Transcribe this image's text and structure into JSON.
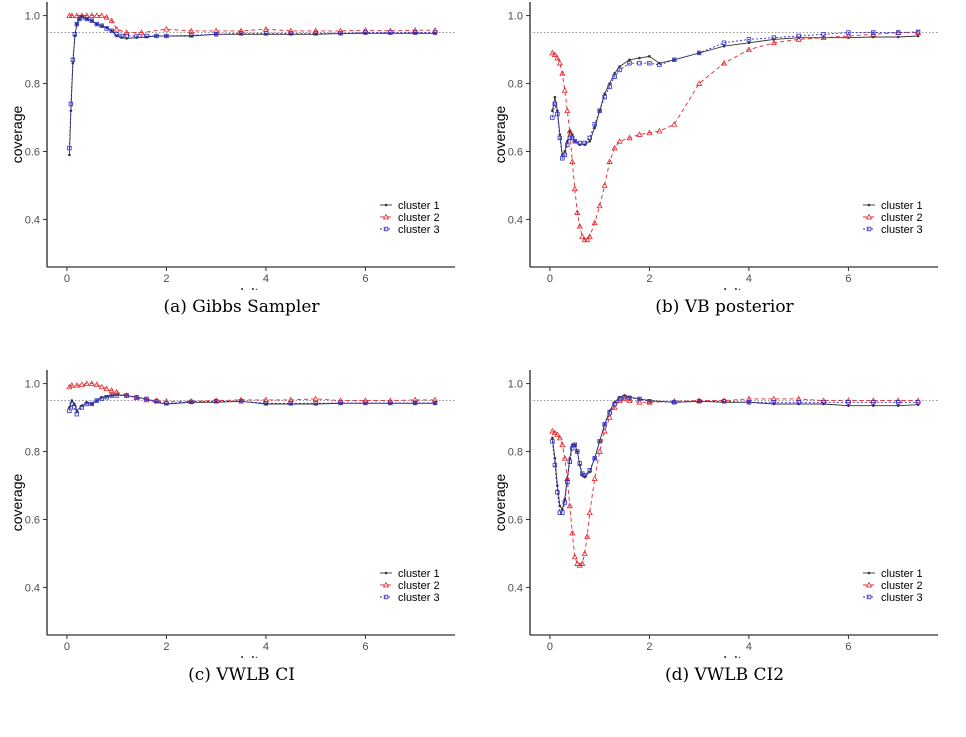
{
  "chart_data": [
    {
      "type": "line",
      "caption": "(a) Gibbs Sampler",
      "xlabel": "delta",
      "ylabel": "coverage",
      "xlim": [
        -0.4,
        7.8
      ],
      "ylim": [
        0.26,
        1.04
      ],
      "xticks": [
        0,
        2,
        4,
        6
      ],
      "yticks": [
        0.4,
        0.6,
        0.8,
        1.0
      ],
      "ytick_labels": [
        "0.4",
        "0.6",
        "0.8",
        "1.0"
      ],
      "reference_line": 0.95,
      "grid": false,
      "legend_position": "bottom-right",
      "series": [
        {
          "name": "cluster 1",
          "color": "#333333",
          "dash": "solid",
          "marker": "dot",
          "x": [
            0.05,
            0.08,
            0.12,
            0.16,
            0.2,
            0.25,
            0.3,
            0.4,
            0.5,
            0.6,
            0.7,
            0.8,
            0.9,
            1.0,
            1.1,
            1.2,
            1.4,
            1.6,
            1.8,
            2.0,
            2.5,
            3.0,
            3.5,
            4.0,
            4.5,
            5.0,
            5.5,
            6.0,
            6.5,
            7.0,
            7.4
          ],
          "y": [
            0.59,
            0.72,
            0.86,
            0.94,
            0.975,
            0.99,
            0.997,
            0.99,
            0.985,
            0.975,
            0.97,
            0.965,
            0.955,
            0.94,
            0.935,
            0.933,
            0.935,
            0.937,
            0.94,
            0.94,
            0.94,
            0.945,
            0.945,
            0.945,
            0.945,
            0.945,
            0.947,
            0.948,
            0.948,
            0.948,
            0.948
          ]
        },
        {
          "name": "cluster 2",
          "color": "#e8262b",
          "dash": "4,3",
          "marker": "triangle",
          "x": [
            0.05,
            0.1,
            0.2,
            0.3,
            0.4,
            0.5,
            0.6,
            0.7,
            0.8,
            0.9,
            1.0,
            1.2,
            1.5,
            2.0,
            2.5,
            3.0,
            3.5,
            4.0,
            4.5,
            5.0,
            5.5,
            6.0,
            6.5,
            7.0,
            7.4
          ],
          "y": [
            1.0,
            1.0,
            1.0,
            1.0,
            1.0,
            1.0,
            1.0,
            1.0,
            0.995,
            0.985,
            0.96,
            0.95,
            0.95,
            0.96,
            0.955,
            0.955,
            0.955,
            0.96,
            0.955,
            0.955,
            0.955,
            0.957,
            0.955,
            0.957,
            0.957
          ]
        },
        {
          "name": "cluster 3",
          "color": "#2d2dcf",
          "dash": "2,2",
          "marker": "square",
          "x": [
            0.05,
            0.08,
            0.12,
            0.16,
            0.2,
            0.25,
            0.3,
            0.4,
            0.5,
            0.6,
            0.7,
            0.8,
            0.9,
            1.0,
            1.1,
            1.2,
            1.4,
            1.6,
            1.8,
            2.0,
            2.5,
            3.0,
            3.5,
            4.0,
            4.5,
            5.0,
            5.5,
            6.0,
            6.5,
            7.0,
            7.4
          ],
          "y": [
            0.61,
            0.74,
            0.87,
            0.945,
            0.975,
            0.99,
            0.995,
            0.99,
            0.985,
            0.975,
            0.97,
            0.962,
            0.955,
            0.945,
            0.94,
            0.94,
            0.94,
            0.94,
            0.94,
            0.94,
            0.942,
            0.945,
            0.948,
            0.948,
            0.948,
            0.948,
            0.948,
            0.95,
            0.95,
            0.95,
            0.95
          ]
        }
      ]
    },
    {
      "type": "line",
      "caption": "(b) VB posterior",
      "xlabel": "delta",
      "ylabel": "coverage",
      "xlim": [
        -0.4,
        7.8
      ],
      "ylim": [
        0.26,
        1.04
      ],
      "xticks": [
        0,
        2,
        4,
        6
      ],
      "yticks": [
        0.4,
        0.6,
        0.8,
        1.0
      ],
      "ytick_labels": [
        "0.4",
        "0.6",
        "0.8",
        "1.0"
      ],
      "reference_line": 0.95,
      "grid": false,
      "legend_position": "bottom-right",
      "series": [
        {
          "name": "cluster 1",
          "color": "#333333",
          "dash": "solid",
          "marker": "dot",
          "x": [
            0.05,
            0.1,
            0.15,
            0.2,
            0.25,
            0.3,
            0.35,
            0.4,
            0.45,
            0.5,
            0.6,
            0.7,
            0.8,
            0.9,
            1.0,
            1.1,
            1.2,
            1.3,
            1.4,
            1.6,
            1.8,
            2.0,
            2.2,
            2.5,
            3.0,
            3.5,
            4.0,
            4.5,
            5.0,
            5.5,
            6.0,
            6.5,
            7.0,
            7.4
          ],
          "y": [
            0.72,
            0.76,
            0.72,
            0.65,
            0.59,
            0.6,
            0.63,
            0.66,
            0.65,
            0.63,
            0.62,
            0.62,
            0.63,
            0.67,
            0.72,
            0.77,
            0.8,
            0.83,
            0.85,
            0.87,
            0.875,
            0.88,
            0.86,
            0.87,
            0.89,
            0.91,
            0.92,
            0.93,
            0.935,
            0.935,
            0.935,
            0.937,
            0.937,
            0.94
          ]
        },
        {
          "name": "cluster 2",
          "color": "#e8262b",
          "dash": "4,3",
          "marker": "triangle",
          "x": [
            0.05,
            0.1,
            0.15,
            0.2,
            0.25,
            0.3,
            0.35,
            0.4,
            0.45,
            0.5,
            0.55,
            0.6,
            0.65,
            0.7,
            0.75,
            0.8,
            0.9,
            1.0,
            1.1,
            1.2,
            1.3,
            1.4,
            1.6,
            1.8,
            2.0,
            2.2,
            2.5,
            3.0,
            3.5,
            4.0,
            4.5,
            5.0,
            5.5,
            6.0,
            6.5,
            7.0,
            7.4
          ],
          "y": [
            0.89,
            0.885,
            0.875,
            0.86,
            0.83,
            0.78,
            0.72,
            0.66,
            0.57,
            0.49,
            0.42,
            0.38,
            0.35,
            0.34,
            0.34,
            0.35,
            0.39,
            0.44,
            0.5,
            0.57,
            0.61,
            0.63,
            0.64,
            0.65,
            0.655,
            0.66,
            0.68,
            0.8,
            0.86,
            0.9,
            0.92,
            0.93,
            0.935,
            0.94,
            0.945,
            0.95,
            0.95
          ]
        },
        {
          "name": "cluster 3",
          "color": "#2d2dcf",
          "dash": "2,2",
          "marker": "square",
          "x": [
            0.05,
            0.1,
            0.15,
            0.2,
            0.25,
            0.3,
            0.35,
            0.4,
            0.45,
            0.5,
            0.6,
            0.7,
            0.8,
            0.9,
            1.0,
            1.1,
            1.2,
            1.3,
            1.4,
            1.6,
            1.8,
            2.0,
            2.2,
            2.5,
            3.0,
            3.5,
            4.0,
            4.5,
            5.0,
            5.5,
            6.0,
            6.5,
            7.0,
            7.4
          ],
          "y": [
            0.7,
            0.74,
            0.71,
            0.64,
            0.58,
            0.59,
            0.62,
            0.64,
            0.64,
            0.63,
            0.625,
            0.625,
            0.64,
            0.68,
            0.72,
            0.76,
            0.79,
            0.82,
            0.84,
            0.86,
            0.86,
            0.86,
            0.855,
            0.87,
            0.89,
            0.92,
            0.93,
            0.935,
            0.94,
            0.945,
            0.95,
            0.95,
            0.95,
            0.952
          ]
        }
      ]
    },
    {
      "type": "line",
      "caption": "(c) VWLB CI",
      "xlabel": "delta",
      "ylabel": "coverage",
      "xlim": [
        -0.4,
        7.8
      ],
      "ylim": [
        0.26,
        1.04
      ],
      "xticks": [
        0,
        2,
        4,
        6
      ],
      "yticks": [
        0.4,
        0.6,
        0.8,
        1.0
      ],
      "ytick_labels": [
        "0.4",
        "0.6",
        "0.8",
        "1.0"
      ],
      "reference_line": 0.95,
      "grid": false,
      "legend_position": "bottom-right",
      "series": [
        {
          "name": "cluster 1",
          "color": "#333333",
          "dash": "solid",
          "marker": "dot",
          "x": [
            0.05,
            0.1,
            0.15,
            0.2,
            0.3,
            0.4,
            0.5,
            0.6,
            0.7,
            0.8,
            0.9,
            1.0,
            1.2,
            1.4,
            1.6,
            1.8,
            2.0,
            2.5,
            3.0,
            3.5,
            4.0,
            4.5,
            5.0,
            5.5,
            6.0,
            6.5,
            7.0,
            7.4
          ],
          "y": [
            0.93,
            0.95,
            0.94,
            0.92,
            0.935,
            0.945,
            0.94,
            0.95,
            0.96,
            0.962,
            0.965,
            0.967,
            0.965,
            0.96,
            0.955,
            0.945,
            0.94,
            0.945,
            0.945,
            0.948,
            0.94,
            0.94,
            0.94,
            0.942,
            0.942,
            0.942,
            0.942,
            0.942
          ]
        },
        {
          "name": "cluster 2",
          "color": "#e8262b",
          "dash": "4,3",
          "marker": "triangle",
          "x": [
            0.05,
            0.1,
            0.2,
            0.3,
            0.4,
            0.5,
            0.6,
            0.7,
            0.8,
            0.9,
            1.0,
            1.2,
            1.4,
            1.6,
            1.8,
            2.0,
            2.5,
            3.0,
            3.5,
            4.0,
            4.5,
            5.0,
            5.5,
            6.0,
            6.5,
            7.0,
            7.4
          ],
          "y": [
            0.99,
            0.995,
            0.995,
            0.997,
            1.0,
            1.0,
            0.997,
            0.99,
            0.985,
            0.98,
            0.975,
            0.965,
            0.958,
            0.952,
            0.95,
            0.948,
            0.948,
            0.95,
            0.952,
            0.952,
            0.952,
            0.955,
            0.95,
            0.95,
            0.95,
            0.952,
            0.952
          ]
        },
        {
          "name": "cluster 3",
          "color": "#2d2dcf",
          "dash": "2,2",
          "marker": "square",
          "x": [
            0.05,
            0.1,
            0.15,
            0.2,
            0.3,
            0.4,
            0.5,
            0.6,
            0.7,
            0.8,
            0.9,
            1.0,
            1.2,
            1.4,
            1.6,
            1.8,
            2.0,
            2.5,
            3.0,
            3.5,
            4.0,
            4.5,
            5.0,
            5.5,
            6.0,
            6.5,
            7.0,
            7.4
          ],
          "y": [
            0.92,
            0.94,
            0.93,
            0.91,
            0.93,
            0.94,
            0.94,
            0.95,
            0.955,
            0.96,
            0.965,
            0.965,
            0.965,
            0.96,
            0.955,
            0.948,
            0.942,
            0.946,
            0.948,
            0.948,
            0.942,
            0.942,
            0.942,
            0.943,
            0.943,
            0.943,
            0.943,
            0.943
          ]
        }
      ]
    },
    {
      "type": "line",
      "caption": "(d) VWLB CI2",
      "xlabel": "delta",
      "ylabel": "coverage",
      "xlim": [
        -0.4,
        7.8
      ],
      "ylim": [
        0.26,
        1.04
      ],
      "xticks": [
        0,
        2,
        4,
        6
      ],
      "yticks": [
        0.4,
        0.6,
        0.8,
        1.0
      ],
      "ytick_labels": [
        "0.4",
        "0.6",
        "0.8",
        "1.0"
      ],
      "reference_line": 0.95,
      "grid": false,
      "legend_position": "bottom-right",
      "series": [
        {
          "name": "cluster 1",
          "color": "#333333",
          "dash": "solid",
          "marker": "dot",
          "x": [
            0.05,
            0.1,
            0.15,
            0.2,
            0.25,
            0.3,
            0.35,
            0.4,
            0.45,
            0.5,
            0.55,
            0.6,
            0.65,
            0.7,
            0.8,
            0.9,
            1.0,
            1.1,
            1.2,
            1.3,
            1.4,
            1.5,
            1.6,
            1.8,
            2.0,
            2.5,
            3.0,
            3.5,
            4.0,
            4.5,
            5.0,
            5.5,
            6.0,
            6.5,
            7.0,
            7.4
          ],
          "y": [
            0.84,
            0.78,
            0.7,
            0.64,
            0.63,
            0.66,
            0.72,
            0.78,
            0.82,
            0.82,
            0.8,
            0.76,
            0.73,
            0.725,
            0.74,
            0.78,
            0.83,
            0.88,
            0.92,
            0.945,
            0.96,
            0.965,
            0.96,
            0.955,
            0.95,
            0.945,
            0.948,
            0.945,
            0.945,
            0.94,
            0.94,
            0.94,
            0.935,
            0.935,
            0.935,
            0.938
          ]
        },
        {
          "name": "cluster 2",
          "color": "#e8262b",
          "dash": "4,3",
          "marker": "triangle",
          "x": [
            0.05,
            0.1,
            0.15,
            0.2,
            0.25,
            0.3,
            0.35,
            0.4,
            0.45,
            0.5,
            0.55,
            0.6,
            0.65,
            0.7,
            0.75,
            0.8,
            0.9,
            1.0,
            1.1,
            1.2,
            1.3,
            1.4,
            1.5,
            1.6,
            1.8,
            2.0,
            2.5,
            3.0,
            3.5,
            4.0,
            4.5,
            5.0,
            5.5,
            6.0,
            6.5,
            7.0,
            7.4
          ],
          "y": [
            0.86,
            0.855,
            0.85,
            0.84,
            0.82,
            0.78,
            0.72,
            0.64,
            0.56,
            0.49,
            0.47,
            0.465,
            0.47,
            0.5,
            0.55,
            0.62,
            0.72,
            0.8,
            0.86,
            0.9,
            0.93,
            0.95,
            0.955,
            0.95,
            0.945,
            0.945,
            0.948,
            0.95,
            0.95,
            0.955,
            0.955,
            0.955,
            0.95,
            0.95,
            0.95,
            0.95,
            0.95
          ]
        },
        {
          "name": "cluster 3",
          "color": "#2d2dcf",
          "dash": "2,2",
          "marker": "square",
          "x": [
            0.05,
            0.1,
            0.15,
            0.2,
            0.25,
            0.3,
            0.35,
            0.4,
            0.45,
            0.5,
            0.55,
            0.6,
            0.65,
            0.7,
            0.8,
            0.9,
            1.0,
            1.1,
            1.2,
            1.3,
            1.4,
            1.5,
            1.6,
            1.8,
            2.0,
            2.5,
            3.0,
            3.5,
            4.0,
            4.5,
            5.0,
            5.5,
            6.0,
            6.5,
            7.0,
            7.4
          ],
          "y": [
            0.83,
            0.76,
            0.68,
            0.62,
            0.62,
            0.65,
            0.71,
            0.77,
            0.81,
            0.82,
            0.8,
            0.765,
            0.735,
            0.73,
            0.745,
            0.78,
            0.83,
            0.88,
            0.915,
            0.94,
            0.955,
            0.96,
            0.958,
            0.955,
            0.948,
            0.945,
            0.948,
            0.948,
            0.945,
            0.945,
            0.945,
            0.945,
            0.945,
            0.945,
            0.945,
            0.945
          ]
        }
      ]
    }
  ]
}
